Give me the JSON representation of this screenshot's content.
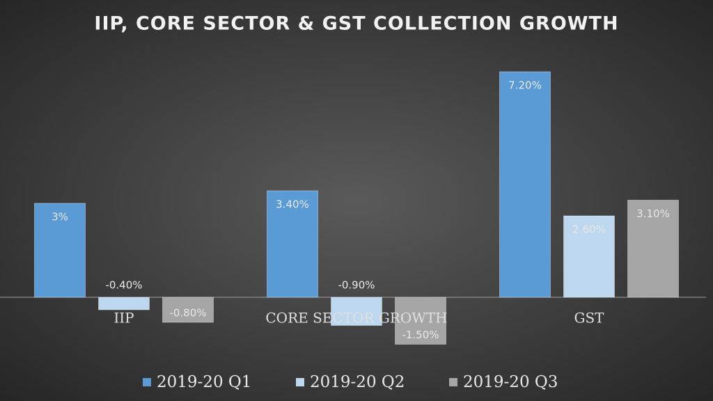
{
  "chart_data": {
    "type": "bar",
    "title": "IIP, CORE SECTOR & GST COLLECTION GROWTH",
    "categories": [
      "IIP",
      "CORE SECTOR GROWTH",
      "GST"
    ],
    "series": [
      {
        "name": "2019-20 Q1",
        "color": "#5b9bd5",
        "values": [
          3,
          3.4,
          7.2
        ],
        "value_labels": [
          "3%",
          "3.40%",
          "7.20%"
        ]
      },
      {
        "name": "2019-20 Q2",
        "color": "#bdd7ee",
        "values": [
          -0.4,
          -0.9,
          2.6
        ],
        "value_labels": [
          "-0.40%",
          "-0.90%",
          "2.60%"
        ]
      },
      {
        "name": "2019-20 Q3",
        "color": "#a5a5a5",
        "values": [
          -0.8,
          -1.5,
          3.1
        ],
        "value_labels": [
          "-0.80%",
          "-1.50%",
          "3.10%"
        ]
      }
    ]
  }
}
